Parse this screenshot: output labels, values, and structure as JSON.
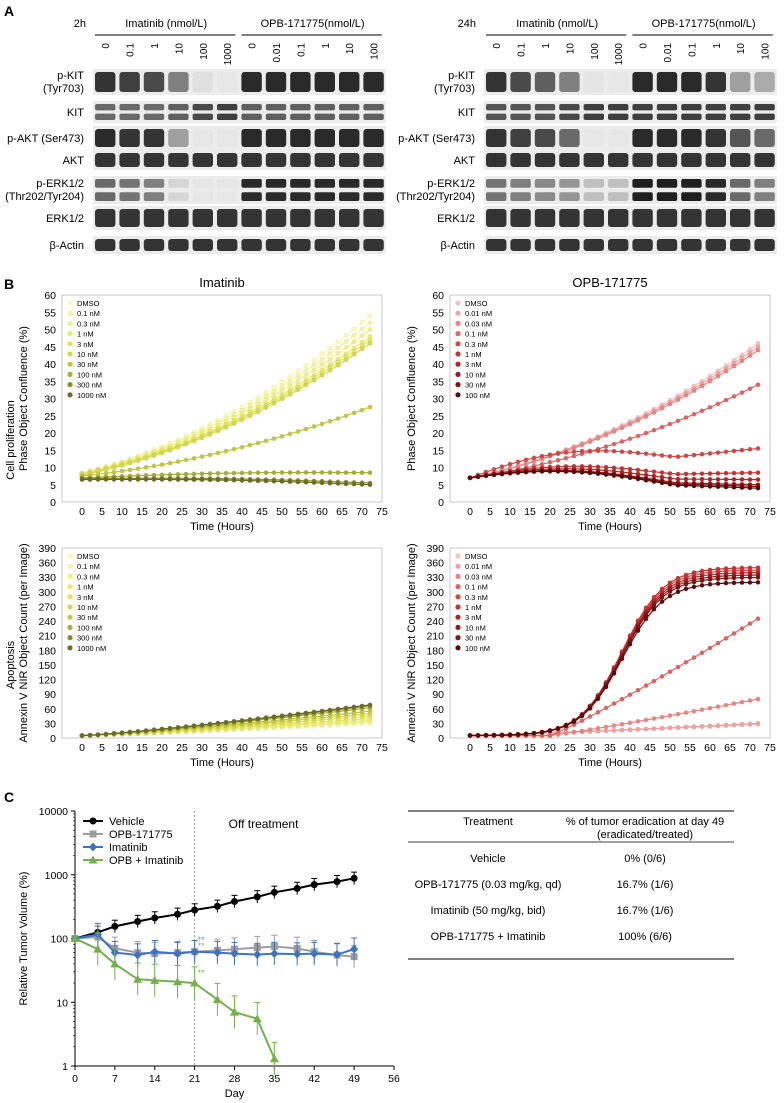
{
  "panels": {
    "A": "A",
    "B": "B",
    "C": "C"
  },
  "western": [
    {
      "time": "2h",
      "groups": [
        {
          "label": "Imatinib (nmol/L)",
          "doses": [
            "0",
            "0.1",
            "1",
            "10",
            "100",
            "1000"
          ]
        },
        {
          "label": "OPB-171775(nmol/L)",
          "doses": [
            "0",
            "0.01",
            "0.1",
            "1",
            "10",
            "100"
          ]
        }
      ],
      "rows": [
        {
          "label": "p-KIT",
          "sub": "(Tyr703)"
        },
        {
          "label": "KIT",
          "sub": ""
        },
        {
          "label": "p-AKT (Ser473)",
          "sub": ""
        },
        {
          "label": "AKT",
          "sub": ""
        },
        {
          "label": "p-ERK1/2",
          "sub": "(Thr202/Tyr204)"
        },
        {
          "label": "ERK1/2",
          "sub": ""
        },
        {
          "label": "β-Actin",
          "sub": ""
        }
      ],
      "intensity": [
        [
          0.85,
          0.8,
          0.75,
          0.5,
          0.05,
          0.02,
          0.9,
          0.9,
          0.9,
          0.9,
          0.9,
          0.9
        ],
        [
          0.6,
          0.6,
          0.6,
          0.65,
          0.75,
          0.8,
          0.65,
          0.65,
          0.65,
          0.65,
          0.65,
          0.65
        ],
        [
          0.9,
          0.85,
          0.85,
          0.35,
          0.02,
          0.02,
          0.9,
          0.9,
          0.9,
          0.9,
          0.9,
          0.9
        ],
        [
          0.85,
          0.85,
          0.85,
          0.85,
          0.85,
          0.85,
          0.85,
          0.85,
          0.85,
          0.85,
          0.85,
          0.85
        ],
        [
          0.6,
          0.55,
          0.5,
          0.1,
          0.02,
          0.02,
          0.9,
          0.9,
          0.9,
          0.9,
          0.9,
          0.9
        ],
        [
          0.85,
          0.85,
          0.85,
          0.85,
          0.85,
          0.85,
          0.85,
          0.85,
          0.85,
          0.85,
          0.85,
          0.85
        ],
        [
          0.85,
          0.85,
          0.85,
          0.85,
          0.85,
          0.85,
          0.85,
          0.85,
          0.85,
          0.85,
          0.85,
          0.85
        ]
      ]
    },
    {
      "time": "24h",
      "groups": [
        {
          "label": "Imatinib (nmol/L)",
          "doses": [
            "0",
            "0.1",
            "1",
            "10",
            "100",
            "1000"
          ]
        },
        {
          "label": "OPB-171775(nmol/L)",
          "doses": [
            "0",
            "0.01",
            "0.1",
            "1",
            "10",
            "100"
          ]
        }
      ],
      "rows": [
        {
          "label": "p-KIT",
          "sub": "(Tyr703)"
        },
        {
          "label": "KIT",
          "sub": ""
        },
        {
          "label": "p-AKT (Ser473)",
          "sub": ""
        },
        {
          "label": "AKT",
          "sub": ""
        },
        {
          "label": "p-ERK1/2",
          "sub": "(Thr202/Tyr204)"
        },
        {
          "label": "ERK1/2",
          "sub": ""
        },
        {
          "label": "β-Actin",
          "sub": ""
        }
      ],
      "intensity": [
        [
          0.85,
          0.75,
          0.65,
          0.5,
          0.03,
          0.02,
          0.9,
          0.9,
          0.9,
          0.85,
          0.35,
          0.3
        ],
        [
          0.7,
          0.7,
          0.7,
          0.75,
          0.8,
          0.8,
          0.8,
          0.8,
          0.8,
          0.8,
          0.8,
          0.8
        ],
        [
          0.85,
          0.8,
          0.75,
          0.6,
          0.02,
          0.02,
          0.9,
          0.9,
          0.9,
          0.85,
          0.7,
          0.6
        ],
        [
          0.85,
          0.85,
          0.85,
          0.85,
          0.85,
          0.85,
          0.85,
          0.85,
          0.85,
          0.85,
          0.85,
          0.85
        ],
        [
          0.55,
          0.5,
          0.45,
          0.4,
          0.2,
          0.2,
          0.95,
          0.95,
          0.95,
          0.9,
          0.6,
          0.5
        ],
        [
          0.85,
          0.85,
          0.85,
          0.85,
          0.85,
          0.85,
          0.85,
          0.85,
          0.85,
          0.85,
          0.85,
          0.85
        ],
        [
          0.85,
          0.85,
          0.85,
          0.85,
          0.85,
          0.85,
          0.85,
          0.85,
          0.85,
          0.85,
          0.85,
          0.85
        ]
      ]
    }
  ],
  "side_labels": {
    "prolif": "Cell proliferation",
    "apop": "Apoptosis"
  },
  "colors": {
    "imatinib": [
      "#fbfbb8",
      "#f6f59a",
      "#f2f27e",
      "#ecec67",
      "#e4e45a",
      "#d6d84c",
      "#c4c73e",
      "#a9ad33",
      "#8a8e2a",
      "#6b6e22"
    ],
    "opb": [
      "#f7c4c4",
      "#f0a3a3",
      "#e98585",
      "#e06464",
      "#d44747",
      "#c63434",
      "#b22626",
      "#9a1b1b",
      "#801313",
      "#5a0c0c"
    ],
    "vehicle": "#000000",
    "opb_line": "#9e9e9e",
    "imatinib_line": "#3e73c4",
    "combo": "#73b14a",
    "star_blue": "#3e9be0",
    "star_grey": "#a0a0a0",
    "star_green": "#73b14a"
  },
  "chart_data": [
    {
      "type": "line",
      "title": "Imatinib",
      "xlabel": "Time (Hours)",
      "ylabel": "Phase Object Confluence (%)",
      "xlim": [
        -5,
        75
      ],
      "ylim": [
        0,
        60
      ],
      "xticks": [
        0,
        5,
        10,
        15,
        20,
        25,
        30,
        35,
        40,
        45,
        50,
        55,
        60,
        65,
        70,
        75
      ],
      "yticks": [
        0,
        5,
        10,
        15,
        20,
        25,
        30,
        35,
        40,
        45,
        50,
        55,
        60
      ],
      "palette": "imatinib",
      "series": [
        {
          "name": "DMSO",
          "start": 8.5,
          "end": 54,
          "shape": "grow"
        },
        {
          "name": "0.1 nM",
          "start": 8.3,
          "end": 52,
          "shape": "grow"
        },
        {
          "name": "0.3 nM",
          "start": 8.2,
          "end": 50,
          "shape": "grow"
        },
        {
          "name": "1 nM",
          "start": 8.1,
          "end": 48,
          "shape": "grow"
        },
        {
          "name": "3 nM",
          "start": 8.0,
          "end": 47,
          "shape": "grow"
        },
        {
          "name": "10 nM",
          "start": 7.8,
          "end": 46,
          "shape": "grow"
        },
        {
          "name": "30 nM",
          "start": 7.5,
          "end": 27.5,
          "shape": "grow"
        },
        {
          "name": "100 nM",
          "start": 7.0,
          "end": 8.5,
          "shape": "flat"
        },
        {
          "name": "300 nM",
          "start": 6.8,
          "end": 5.5,
          "shape": "flat"
        },
        {
          "name": "1000 nM",
          "start": 6.5,
          "end": 5.0,
          "shape": "flat"
        }
      ]
    },
    {
      "type": "line",
      "title": "OPB-171775",
      "xlabel": "Time (Hours)",
      "ylabel": "Phase Object Confluence (%)",
      "xlim": [
        -5,
        75
      ],
      "ylim": [
        0,
        60
      ],
      "xticks": [
        0,
        5,
        10,
        15,
        20,
        25,
        30,
        35,
        40,
        45,
        50,
        55,
        60,
        65,
        70,
        75
      ],
      "yticks": [
        0,
        5,
        10,
        15,
        20,
        25,
        30,
        35,
        40,
        45,
        50,
        55,
        60
      ],
      "palette": "opb",
      "series": [
        {
          "name": "DMSO",
          "start": 7.0,
          "end": 46,
          "shape": "grow"
        },
        {
          "name": "0.01 nM",
          "start": 7.0,
          "end": 45,
          "shape": "grow"
        },
        {
          "name": "0.03 nM",
          "start": 7.0,
          "end": 44,
          "shape": "grow"
        },
        {
          "name": "0.1 nM",
          "start": 7.0,
          "end": 34,
          "shape": "grow"
        },
        {
          "name": "0.3 nM",
          "start": 7.0,
          "end": 15.5,
          "shape": "hump"
        },
        {
          "name": "1 nM",
          "start": 7.0,
          "end": 8.5,
          "shape": "hump"
        },
        {
          "name": "3 nM",
          "start": 7.0,
          "end": 6.5,
          "shape": "hump"
        },
        {
          "name": "10 nM",
          "start": 7.0,
          "end": 5.0,
          "shape": "hump"
        },
        {
          "name": "30 nM",
          "start": 7.0,
          "end": 4.5,
          "shape": "hump"
        },
        {
          "name": "100 nM",
          "start": 7.0,
          "end": 4.0,
          "shape": "hump"
        }
      ]
    },
    {
      "type": "line",
      "title": "",
      "xlabel": "Time (Hours)",
      "ylabel": "Annexin V NIR Object Count (per Image)",
      "xlim": [
        -5,
        75
      ],
      "ylim": [
        0,
        390
      ],
      "xticks": [
        0,
        5,
        10,
        15,
        20,
        25,
        30,
        35,
        40,
        45,
        50,
        55,
        60,
        65,
        70,
        75
      ],
      "yticks": [
        0,
        30,
        60,
        90,
        120,
        150,
        180,
        210,
        240,
        270,
        300,
        330,
        360,
        390
      ],
      "palette": "imatinib",
      "series": [
        {
          "name": "DMSO",
          "start": 5,
          "end": 30,
          "shape": "lin"
        },
        {
          "name": "0.1 nM",
          "start": 5,
          "end": 33,
          "shape": "lin"
        },
        {
          "name": "0.3 nM",
          "start": 5,
          "end": 36,
          "shape": "lin"
        },
        {
          "name": "1 nM",
          "start": 5,
          "end": 40,
          "shape": "lin"
        },
        {
          "name": "3 nM",
          "start": 5,
          "end": 45,
          "shape": "lin"
        },
        {
          "name": "10 nM",
          "start": 5,
          "end": 50,
          "shape": "lin"
        },
        {
          "name": "30 nM",
          "start": 5,
          "end": 55,
          "shape": "lin"
        },
        {
          "name": "100 nM",
          "start": 5,
          "end": 62,
          "shape": "lin"
        },
        {
          "name": "300 nM",
          "start": 5,
          "end": 66,
          "shape": "lin"
        },
        {
          "name": "1000 nM",
          "start": 5,
          "end": 68,
          "shape": "lin"
        }
      ]
    },
    {
      "type": "line",
      "title": "",
      "xlabel": "Time (Hours)",
      "ylabel": "Annexin V NIR Object Count (per Image)",
      "xlim": [
        -5,
        75
      ],
      "ylim": [
        0,
        390
      ],
      "xticks": [
        0,
        5,
        10,
        15,
        20,
        25,
        30,
        35,
        40,
        45,
        50,
        55,
        60,
        65,
        70,
        75
      ],
      "yticks": [
        0,
        30,
        60,
        90,
        120,
        150,
        180,
        210,
        240,
        270,
        300,
        330,
        360,
        390
      ],
      "palette": "opb",
      "series": [
        {
          "name": "DMSO",
          "start": 5,
          "end": 28,
          "shape": "lin"
        },
        {
          "name": "0.01 nM",
          "start": 5,
          "end": 30,
          "shape": "lin"
        },
        {
          "name": "0.03 nM",
          "start": 5,
          "end": 80,
          "shape": "late"
        },
        {
          "name": "0.1 nM",
          "start": 5,
          "end": 245,
          "shape": "late"
        },
        {
          "name": "0.3 nM",
          "start": 5,
          "end": 345,
          "shape": "sig"
        },
        {
          "name": "1 nM",
          "start": 5,
          "end": 350,
          "shape": "sig"
        },
        {
          "name": "3 nM",
          "start": 5,
          "end": 340,
          "shape": "sig"
        },
        {
          "name": "10 nM",
          "start": 5,
          "end": 335,
          "shape": "sig"
        },
        {
          "name": "30 nM",
          "start": 5,
          "end": 330,
          "shape": "sig"
        },
        {
          "name": "100 nM",
          "start": 5,
          "end": 320,
          "shape": "sig"
        }
      ]
    },
    {
      "type": "line",
      "title": "",
      "xlabel": "Day",
      "ylabel": "Relative Tumor Volume (%)",
      "xlim": [
        0,
        56
      ],
      "ylim": [
        1,
        10000
      ],
      "yscale": "log",
      "xticks": [
        0,
        7,
        14,
        21,
        28,
        35,
        42,
        49,
        56
      ],
      "yticks": [
        1,
        10,
        100,
        1000,
        10000
      ],
      "annotation": "Off treatment",
      "treatment_end_day": 21,
      "series": [
        {
          "name": "Vehicle",
          "color_key": "vehicle",
          "marker": "circle",
          "x": [
            0,
            4,
            7,
            11,
            14,
            18,
            21,
            25,
            28,
            32,
            35,
            39,
            42,
            46,
            49
          ],
          "y": [
            100,
            125,
            155,
            185,
            210,
            240,
            280,
            320,
            380,
            450,
            530,
            610,
            700,
            780,
            880
          ]
        },
        {
          "name": "OPB-171775",
          "color_key": "opb_line",
          "marker": "square",
          "x": [
            0,
            4,
            7,
            11,
            14,
            18,
            21,
            25,
            28,
            32,
            35,
            39,
            42,
            46,
            49
          ],
          "y": [
            100,
            105,
            70,
            60,
            58,
            60,
            62,
            65,
            68,
            72,
            75,
            70,
            62,
            55,
            52
          ]
        },
        {
          "name": "Imatinib",
          "color_key": "imatinib_line",
          "marker": "diamond",
          "x": [
            0,
            4,
            7,
            11,
            14,
            18,
            21,
            25,
            28,
            32,
            35,
            39,
            42,
            46,
            49
          ],
          "y": [
            100,
            115,
            60,
            55,
            62,
            58,
            62,
            60,
            58,
            56,
            58,
            57,
            58,
            56,
            68
          ]
        },
        {
          "name": "OPB + Imatinib",
          "color_key": "combo",
          "marker": "triangle",
          "x": [
            0,
            4,
            7,
            11,
            14,
            18,
            21,
            25,
            28,
            32,
            35
          ],
          "y": [
            100,
            68,
            40,
            23,
            22,
            21,
            20,
            11,
            7,
            5.5,
            1.3
          ]
        }
      ]
    }
  ],
  "table": {
    "headers": [
      "Treatment",
      "% of tumor eradication at day 49",
      "(eradicated/treated)"
    ],
    "rows": [
      [
        "Vehicle",
        "0% (0/6)"
      ],
      [
        "OPB-171775 (0.03 mg/kg, qd)",
        "16.7% (1/6)"
      ],
      [
        "Imatinib (50 mg/kg, bid)",
        "16.7% (1/6)"
      ],
      [
        "OPB-171775 + Imatinib",
        "100% (6/6)"
      ]
    ]
  }
}
